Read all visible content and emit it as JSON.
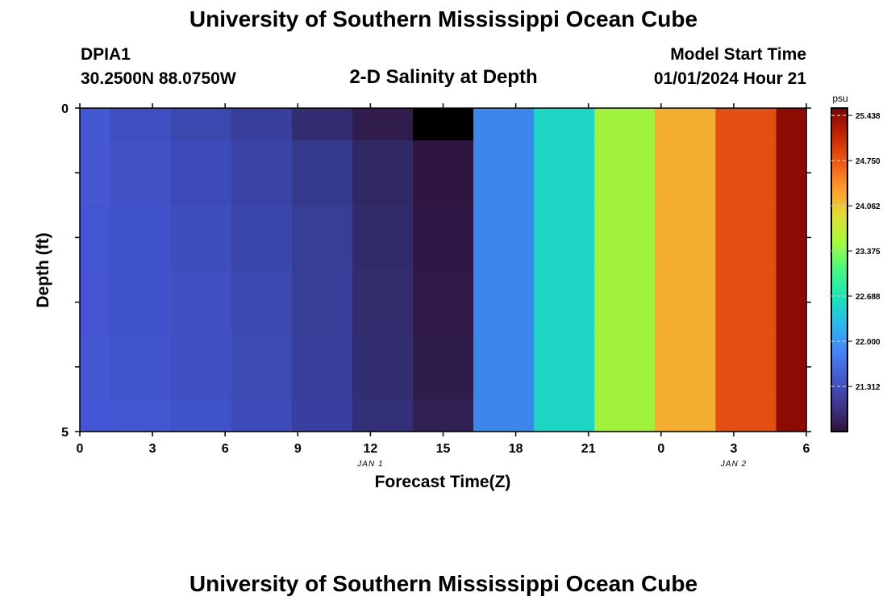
{
  "header": {
    "title": "University of Southern Mississippi Ocean Cube",
    "station": "DPIA1",
    "coords": "30.2500N  88.0750W",
    "subtitle": "2-D Salinity at Depth",
    "model_start_label": "Model Start Time",
    "model_start_value": "01/01/2024 Hour 21"
  },
  "footer": {
    "title": "University of Southern Mississippi Ocean Cube"
  },
  "chart_data": {
    "type": "heatmap",
    "title": "2-D Salinity at Depth",
    "xlabel": "Forecast Time(Z)",
    "ylabel": "Depth (ft)",
    "x_tick_labels": [
      "0",
      "3",
      "6",
      "9",
      "12",
      "15",
      "18",
      "21",
      "0",
      "3",
      "6"
    ],
    "x_date_labels": [
      {
        "label": "JAN 1",
        "at_tick": 4
      },
      {
        "label": "JAN 2",
        "at_tick": 9
      }
    ],
    "xlim_hours": [
      0,
      30
    ],
    "y_tick_labels": [
      "0",
      "5"
    ],
    "ylim": [
      0,
      5
    ],
    "column_centers_hours": [
      0,
      2.5,
      5,
      7.5,
      10,
      12.5,
      15,
      17.5,
      20,
      22.5,
      25,
      27.5,
      30
    ],
    "row_boundaries_ft": [
      0,
      0.5,
      1.5,
      2.5,
      3.5,
      4.5,
      5
    ],
    "cell_colors": [
      [
        "#4558d3",
        "#4557d3",
        "#4455d3",
        "#4454d3",
        "#4557d3",
        "#4356d6"
      ],
      [
        "#3f4fc2",
        "#4052c6",
        "#4153ca",
        "#4153ca",
        "#4154ca",
        "#4257cf"
      ],
      [
        "#3b48b0",
        "#3d4bba",
        "#3e4ebd",
        "#3f50c1",
        "#3e50c2",
        "#3f52c8"
      ],
      [
        "#383f9d",
        "#3a44a6",
        "#3b47ac",
        "#3c49b1",
        "#3c4ab4",
        "#3d4cba"
      ],
      [
        "#332e72",
        "#363a8c",
        "#373e95",
        "#383f99",
        "#383f9c",
        "#393fa0"
      ],
      [
        "#301d4d",
        "#312964",
        "#322b6b",
        "#332d6e",
        "#332e71",
        "#342f79"
      ],
      [
        "#000000",
        "#2e1640",
        "#2f1846",
        "#301a4a",
        "#301c4c",
        "#312053"
      ],
      [
        "#3c87eb",
        "#3c87eb",
        "#3c87eb",
        "#3c87eb",
        "#3c87eb",
        "#3c87eb"
      ],
      [
        "#1ed6c6",
        "#1ed6c6",
        "#1ed6c6",
        "#1ed6c6",
        "#1ed6c6",
        "#1ed6c6"
      ],
      [
        "#a0f23d",
        "#a0f23d",
        "#a0f23d",
        "#a0f23d",
        "#a0f23d",
        "#a0f23d"
      ],
      [
        "#f5ad30",
        "#f5ad30",
        "#f5ad30",
        "#f5ad30",
        "#f5ad30",
        "#f5ad30"
      ],
      [
        "#e34f12",
        "#e34f12",
        "#e34f12",
        "#e34f12",
        "#e34f12",
        "#e34f12"
      ],
      [
        "#8c0b03",
        "#8c0b03",
        "#8c0b03",
        "#8c0b03",
        "#8c0b03",
        "#8c0b03"
      ]
    ],
    "colorbar": {
      "unit": "psu",
      "tick_labels": [
        "25.438",
        "24.750",
        "24.062",
        "23.375",
        "22.688",
        "22.000",
        "21.312"
      ],
      "tick_values": [
        25.438,
        24.75,
        24.062,
        23.375,
        22.688,
        22.0,
        21.312
      ],
      "range": [
        20.625,
        25.55
      ],
      "gradient_stops": [
        "#7a0403",
        "#c42503",
        "#ef5911",
        "#fe9b2d",
        "#e1dd37",
        "#a0fc3c",
        "#46f884",
        "#1ae4b6",
        "#2ab9ed",
        "#4686fb",
        "#455bcd",
        "#3e378f",
        "#30123b"
      ]
    }
  }
}
